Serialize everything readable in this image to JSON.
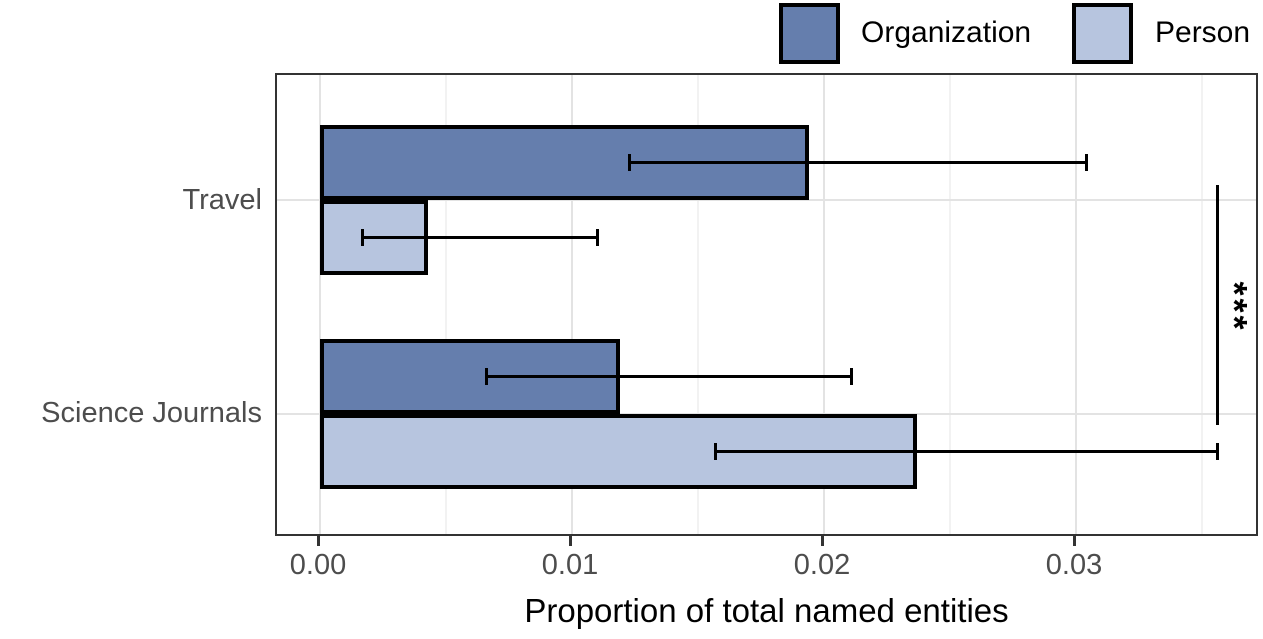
{
  "chart_data": {
    "type": "bar",
    "orientation": "horizontal",
    "xlabel": "Proportion of total named entities",
    "ylabel": "",
    "categories": [
      "Travel",
      "Science Journals"
    ],
    "series": [
      {
        "name": "Organization",
        "color": "#657EAD",
        "values": [
          0.0194,
          0.0119
        ],
        "ci_low": [
          0.0123,
          0.0066
        ],
        "ci_high": [
          0.0304,
          0.0211
        ]
      },
      {
        "name": "Person",
        "color": "#B7C5DF",
        "values": [
          0.0043,
          0.0237
        ],
        "ci_low": [
          0.0017,
          0.0157
        ],
        "ci_high": [
          0.011,
          0.0356
        ]
      }
    ],
    "xlim": [
      -0.0017,
      0.0373
    ],
    "x_ticks_major": [
      0.0,
      0.01,
      0.02,
      0.03
    ],
    "x_tick_labels": [
      "0.00",
      "0.01",
      "0.02",
      "0.03"
    ],
    "x_ticks_minor": [
      0.005,
      0.015,
      0.025,
      0.035
    ],
    "grid": true,
    "legend": {
      "position": "top-right",
      "entries": [
        "Organization",
        "Person"
      ]
    },
    "significance": {
      "label": "***",
      "x_value": 0.0357,
      "spans": [
        "Travel",
        "Science Journals"
      ]
    },
    "style": {
      "bar_border_color": "#000000",
      "error_bar_color": "#000000",
      "panel_border_color": "#333333",
      "axis_text_color": "#4d4d4d",
      "gridline_major_color": "#e3e3e3",
      "gridline_minor_color": "#f2f2f2"
    }
  }
}
